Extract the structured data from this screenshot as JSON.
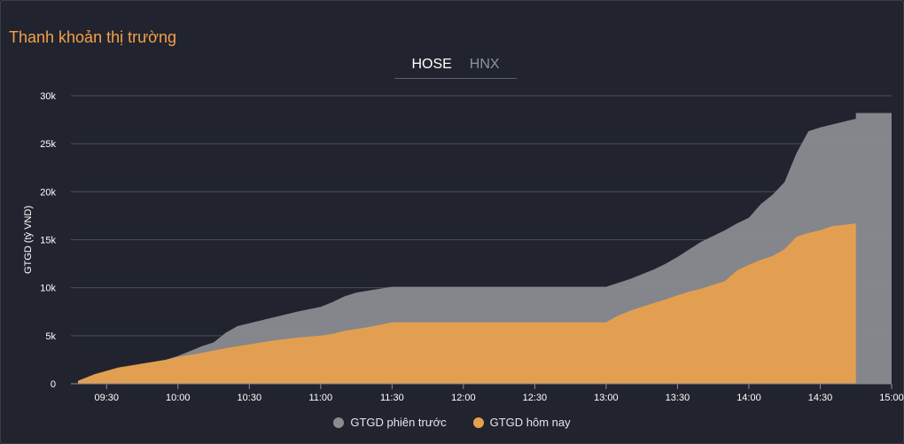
{
  "title": "Thanh khoản thị trường",
  "tabs": [
    {
      "label": "HOSE",
      "active": true
    },
    {
      "label": "HNX",
      "active": false
    }
  ],
  "colors": {
    "previous": "#8a8c90",
    "today": "#e8a04e",
    "grid": "#4a4e5a",
    "axis_text": "#ffffff"
  },
  "chart_data": {
    "type": "area",
    "ylabel": "GTGD (tỷ VND)",
    "ylim": [
      0,
      30000
    ],
    "yticks": [
      0,
      5000,
      10000,
      15000,
      20000,
      25000,
      30000
    ],
    "ytick_labels": [
      "0",
      "5k",
      "10k",
      "15k",
      "20k",
      "25k",
      "30k"
    ],
    "xlim": [
      "09:15",
      "15:00"
    ],
    "xticks": [
      "09:30",
      "10:00",
      "10:30",
      "11:00",
      "11:30",
      "12:00",
      "12:30",
      "13:00",
      "13:30",
      "14:00",
      "14:30",
      "15:00"
    ],
    "grid": true,
    "legend_position": "bottom",
    "series": [
      {
        "name": "GTGD phiên trước",
        "points": [
          [
            "09:18",
            300
          ],
          [
            "09:25",
            1000
          ],
          [
            "09:35",
            1600
          ],
          [
            "09:45",
            2000
          ],
          [
            "09:55",
            2500
          ],
          [
            "10:00",
            2900
          ],
          [
            "10:05",
            3400
          ],
          [
            "10:10",
            3900
          ],
          [
            "10:15",
            4300
          ],
          [
            "10:20",
            5300
          ],
          [
            "10:25",
            6000
          ],
          [
            "10:30",
            6300
          ],
          [
            "10:40",
            6900
          ],
          [
            "10:50",
            7500
          ],
          [
            "11:00",
            8000
          ],
          [
            "11:05",
            8500
          ],
          [
            "11:10",
            9100
          ],
          [
            "11:15",
            9500
          ],
          [
            "11:25",
            9900
          ],
          [
            "11:30",
            10100
          ],
          [
            "12:00",
            10100
          ],
          [
            "12:30",
            10100
          ],
          [
            "13:00",
            10100
          ],
          [
            "13:05",
            10500
          ],
          [
            "13:10",
            10900
          ],
          [
            "13:15",
            11400
          ],
          [
            "13:20",
            11900
          ],
          [
            "13:25",
            12500
          ],
          [
            "13:30",
            13200
          ],
          [
            "13:35",
            14000
          ],
          [
            "13:40",
            14800
          ],
          [
            "13:45",
            15400
          ],
          [
            "13:50",
            16000
          ],
          [
            "13:55",
            16700
          ],
          [
            "14:00",
            17300
          ],
          [
            "14:05",
            18700
          ],
          [
            "14:10",
            19700
          ],
          [
            "14:15",
            21000
          ],
          [
            "14:20",
            24000
          ],
          [
            "14:25",
            26300
          ],
          [
            "14:30",
            26700
          ],
          [
            "14:35",
            27000
          ],
          [
            "14:40",
            27300
          ],
          [
            "14:45",
            27600
          ],
          [
            "14:45",
            28200
          ],
          [
            "15:00",
            28200
          ]
        ]
      },
      {
        "name": "GTGD hôm nay",
        "points": [
          [
            "09:18",
            300
          ],
          [
            "09:25",
            1000
          ],
          [
            "09:35",
            1700
          ],
          [
            "09:45",
            2100
          ],
          [
            "09:55",
            2500
          ],
          [
            "10:00",
            2800
          ],
          [
            "10:10",
            3200
          ],
          [
            "10:20",
            3700
          ],
          [
            "10:30",
            4100
          ],
          [
            "10:40",
            4500
          ],
          [
            "10:50",
            4800
          ],
          [
            "11:00",
            5000
          ],
          [
            "11:05",
            5200
          ],
          [
            "11:10",
            5500
          ],
          [
            "11:20",
            5900
          ],
          [
            "11:30",
            6400
          ],
          [
            "12:00",
            6400
          ],
          [
            "12:30",
            6400
          ],
          [
            "13:00",
            6400
          ],
          [
            "13:05",
            7100
          ],
          [
            "13:10",
            7600
          ],
          [
            "13:15",
            8000
          ],
          [
            "13:20",
            8400
          ],
          [
            "13:25",
            8800
          ],
          [
            "13:30",
            9200
          ],
          [
            "13:35",
            9600
          ],
          [
            "13:40",
            9900
          ],
          [
            "13:45",
            10300
          ],
          [
            "13:50",
            10700
          ],
          [
            "13:55",
            11800
          ],
          [
            "14:00",
            12400
          ],
          [
            "14:05",
            12900
          ],
          [
            "14:10",
            13300
          ],
          [
            "14:15",
            14000
          ],
          [
            "14:20",
            15300
          ],
          [
            "14:25",
            15700
          ],
          [
            "14:30",
            16000
          ],
          [
            "14:35",
            16400
          ],
          [
            "14:45",
            16700
          ],
          [
            "14:45",
            0
          ]
        ]
      }
    ]
  }
}
